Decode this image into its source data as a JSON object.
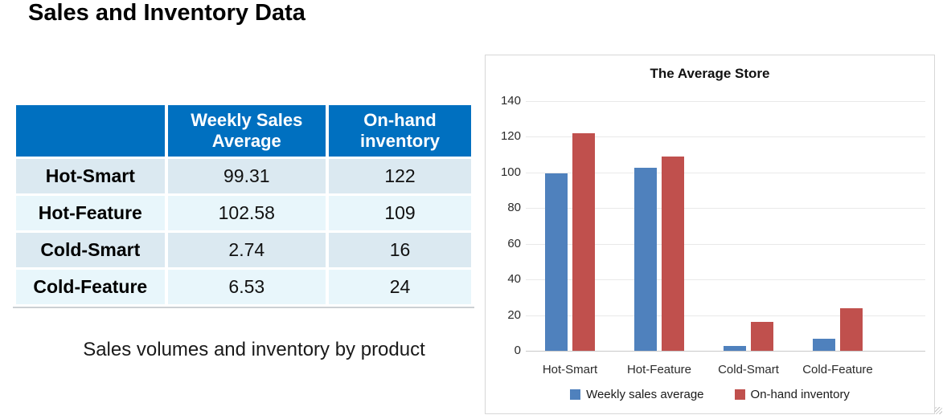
{
  "page": {
    "title": "Sales and Inventory Data",
    "caption": "Sales volumes and inventory by product"
  },
  "table": {
    "columns": [
      "",
      "Weekly Sales Average",
      "On-hand inventory"
    ],
    "rows": [
      {
        "label": "Hot-Smart",
        "weekly_sales_average": "99.31",
        "on_hand_inventory": "122"
      },
      {
        "label": "Hot-Feature",
        "weekly_sales_average": "102.58",
        "on_hand_inventory": "109"
      },
      {
        "label": "Cold-Smart",
        "weekly_sales_average": "2.74",
        "on_hand_inventory": "16"
      },
      {
        "label": "Cold-Feature",
        "weekly_sales_average": "6.53",
        "on_hand_inventory": "24"
      }
    ],
    "colors": {
      "header_bg": "#0070C0",
      "header_text": "#FFFFFF",
      "row_odd_bg": "#DBE9F1",
      "row_even_bg": "#E8F6FB"
    }
  },
  "chart_data": {
    "type": "bar",
    "title": "The Average Store",
    "categories": [
      "Hot-Smart",
      "Hot-Feature",
      "Cold-Smart",
      "Cold-Feature"
    ],
    "series": [
      {
        "name": "Weekly sales average",
        "color": "#4F81BD",
        "values": [
          99.31,
          102.58,
          2.74,
          6.53
        ]
      },
      {
        "name": "On-hand inventory",
        "color": "#C0504D",
        "values": [
          122,
          109,
          16,
          24
        ]
      }
    ],
    "xlabel": "",
    "ylabel": "",
    "ylim": [
      0,
      140
    ],
    "ytick_step": 20,
    "grid": true,
    "legend_position": "bottom"
  }
}
